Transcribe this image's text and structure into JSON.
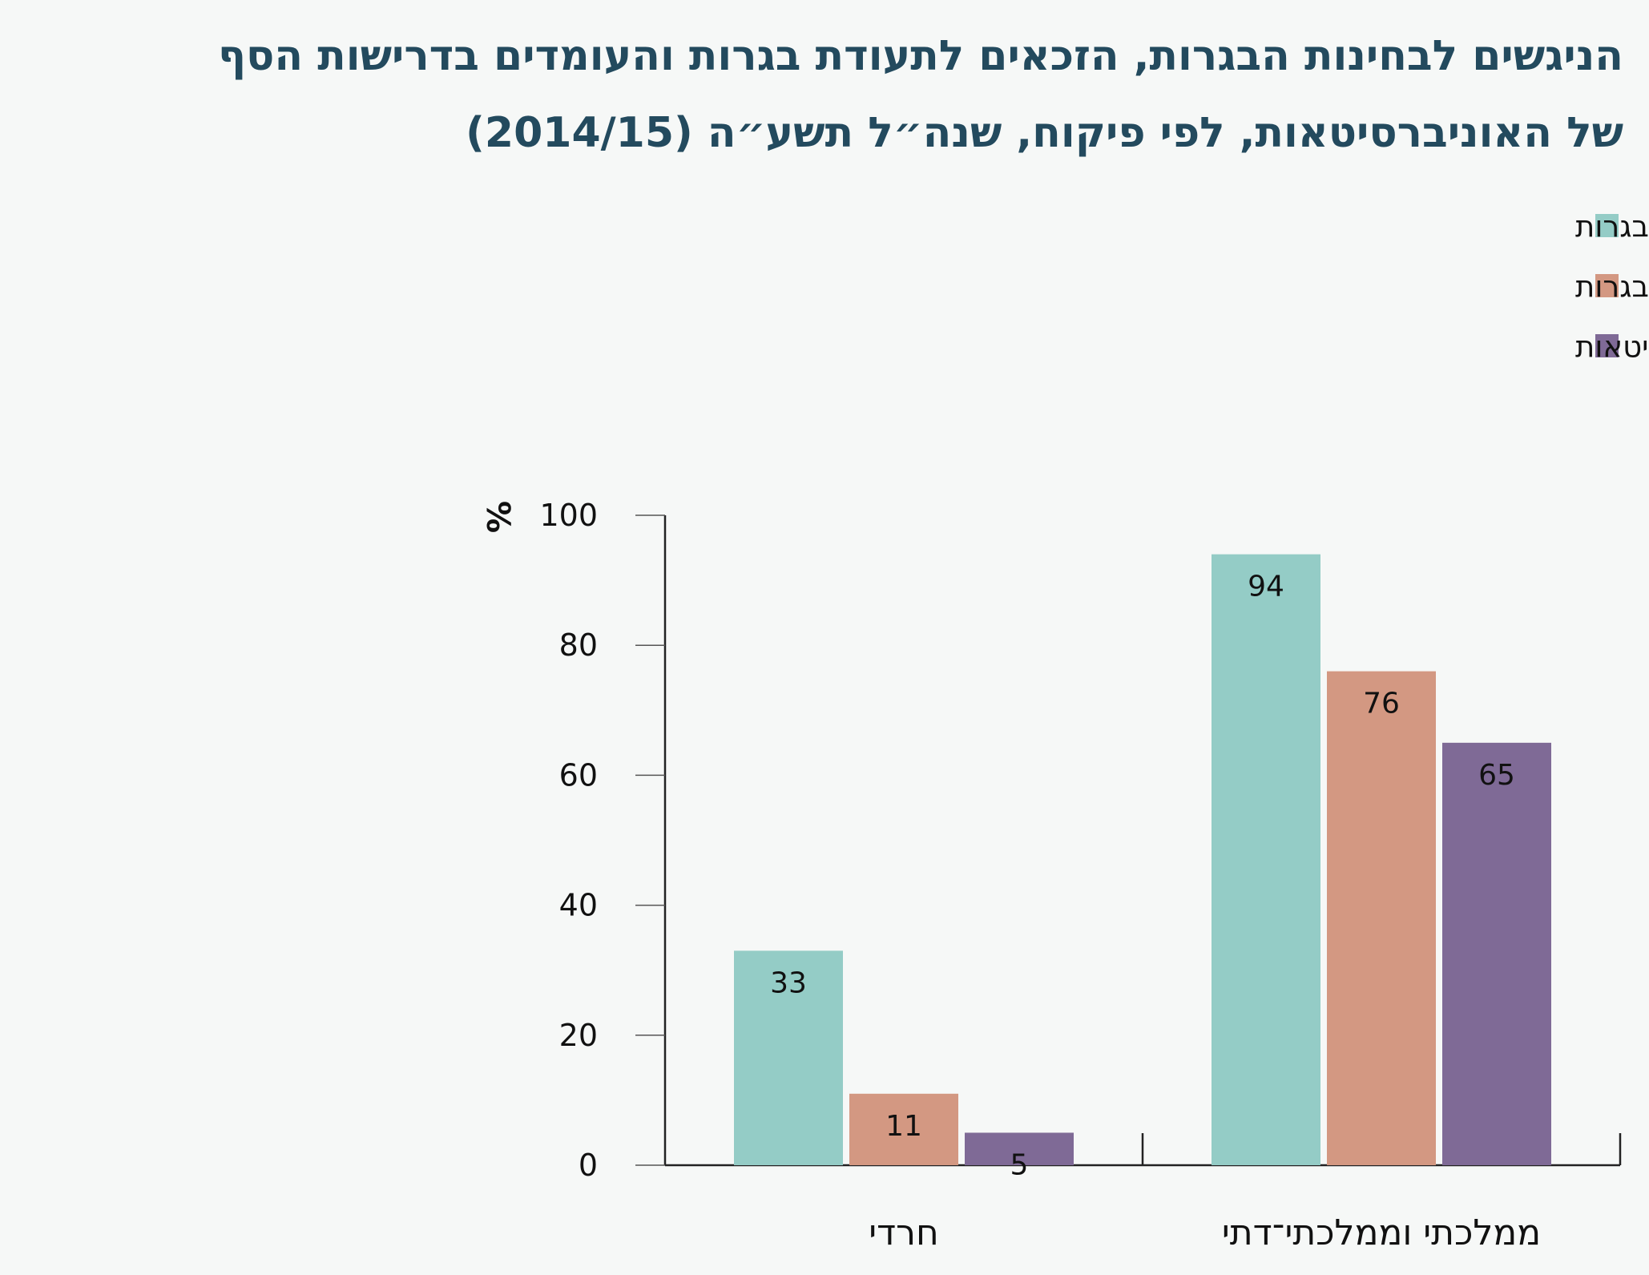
{
  "title_lines": [
    "הניגשים לבחינות הבגרות, הזכאים לתעודת בגרות והעומדים בדרישות הסף",
    "של האוניברסיטאות, לפי פיקוח, שנה״ל תשע״ה (2014/15)"
  ],
  "colors": {
    "background": "#f6f8f7",
    "title": "#234a5e",
    "axis": "#222222"
  },
  "chart_data": {
    "type": "bar",
    "title": "הניגשים לבחינות הבגרות, הזכאים לתעודת בגרות והעומדים בדרישות הסף של האוניברסיטאות, לפי פיקוח, שנה״ל תשע״ה (2014/15)",
    "categories": [
      "חרדי",
      "ממלכתי וממלכתי־דתי"
    ],
    "series": [
      {
        "name": "ניגשים לבחינות הבגרות",
        "color": "#94ccc6",
        "values": [
          33,
          94
        ],
        "labels": [
          "33",
          "94"
        ]
      },
      {
        "name": "זכאים לתעודת בגרות",
        "color": "#d39882",
        "values": [
          11,
          76
        ],
        "labels": [
          "11",
          "76"
        ]
      },
      {
        "name": "עומדים בדרישות הסף של האוניברסיטאות",
        "color": "#7f6a96",
        "values": [
          5,
          65
        ],
        "labels": [
          "5",
          "65"
        ]
      }
    ],
    "ylabel": "%",
    "ylim": [
      0,
      100
    ],
    "yticks": [
      0,
      20,
      40,
      60,
      80,
      100
    ],
    "ytick_labels": [
      "0",
      "20",
      "40",
      "60",
      "80",
      "100"
    ],
    "legend_position": "top-right",
    "grid": false
  }
}
